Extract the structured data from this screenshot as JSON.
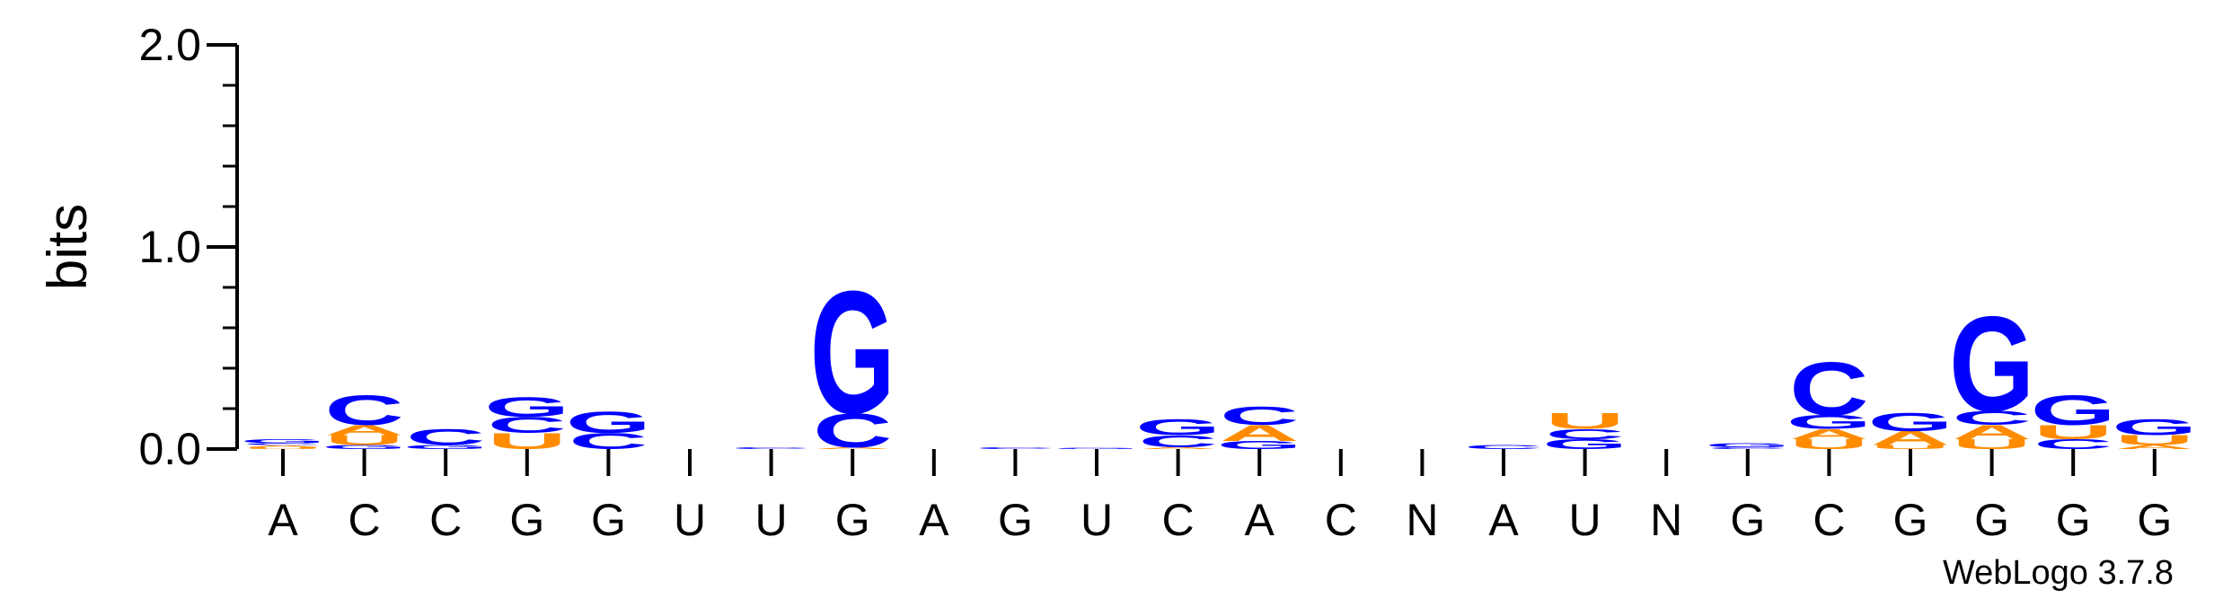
{
  "chart_data": {
    "type": "sequence-logo",
    "ylabel": "bits",
    "ylim": [
      0,
      2.0
    ],
    "yticks": [
      "0.0",
      "1.0",
      "2.0"
    ],
    "credit": "WebLogo 3.7.8",
    "colors": {
      "A": "#ff8c00",
      "U": "#ff8c00",
      "C": "#0000ff",
      "G": "#0000ff"
    },
    "positions": [
      {
        "label": "A",
        "stack": [
          {
            "base": "U",
            "bits": 0.01
          },
          {
            "base": "A",
            "bits": 0.01
          },
          {
            "base": "C",
            "bits": 0.01
          },
          {
            "base": "G",
            "bits": 0.02
          }
        ]
      },
      {
        "label": "C",
        "stack": [
          {
            "base": "G",
            "bits": 0.02
          },
          {
            "base": "U",
            "bits": 0.05
          },
          {
            "base": "A",
            "bits": 0.05
          },
          {
            "base": "C",
            "bits": 0.15
          }
        ]
      },
      {
        "label": "C",
        "stack": [
          {
            "base": "G",
            "bits": 0.02
          },
          {
            "base": "C",
            "bits": 0.08
          }
        ]
      },
      {
        "label": "G",
        "stack": [
          {
            "base": "U",
            "bits": 0.08
          },
          {
            "base": "C",
            "bits": 0.08
          },
          {
            "base": "G",
            "bits": 0.1
          }
        ]
      },
      {
        "label": "G",
        "stack": [
          {
            "base": "C",
            "bits": 0.08
          },
          {
            "base": "G",
            "bits": 0.11
          }
        ]
      },
      {
        "label": "U",
        "stack": []
      },
      {
        "label": "U",
        "stack": [
          {
            "base": "C",
            "bits": 0.01
          }
        ]
      },
      {
        "label": "G",
        "stack": [
          {
            "base": "A",
            "bits": 0.01
          },
          {
            "base": "C",
            "bits": 0.17
          },
          {
            "base": "G",
            "bits": 0.62
          }
        ]
      },
      {
        "label": "A",
        "stack": []
      },
      {
        "label": "G",
        "stack": [
          {
            "base": "C",
            "bits": 0.01
          }
        ]
      },
      {
        "label": "U",
        "stack": [
          {
            "base": "G",
            "bits": 0.005
          }
        ]
      },
      {
        "label": "C",
        "stack": [
          {
            "base": "A",
            "bits": 0.01
          },
          {
            "base": "C",
            "bits": 0.06
          },
          {
            "base": "G",
            "bits": 0.08
          }
        ]
      },
      {
        "label": "A",
        "stack": [
          {
            "base": "G",
            "bits": 0.04
          },
          {
            "base": "A",
            "bits": 0.08
          },
          {
            "base": "C",
            "bits": 0.09
          }
        ]
      },
      {
        "label": "C",
        "stack": []
      },
      {
        "label": "N",
        "stack": []
      },
      {
        "label": "A",
        "stack": [
          {
            "base": "C",
            "bits": 0.02
          }
        ]
      },
      {
        "label": "U",
        "stack": [
          {
            "base": "G",
            "bits": 0.05
          },
          {
            "base": "C",
            "bits": 0.05
          },
          {
            "base": "U",
            "bits": 0.08
          }
        ]
      },
      {
        "label": "N",
        "stack": []
      },
      {
        "label": "G",
        "stack": [
          {
            "base": "C",
            "bits": 0.01
          },
          {
            "base": "G",
            "bits": 0.02
          }
        ]
      },
      {
        "label": "C",
        "stack": [
          {
            "base": "U",
            "bits": 0.05
          },
          {
            "base": "A",
            "bits": 0.05
          },
          {
            "base": "G",
            "bits": 0.07
          },
          {
            "base": "C",
            "bits": 0.27
          }
        ]
      },
      {
        "label": "G",
        "stack": [
          {
            "base": "U",
            "bits": 0.02
          },
          {
            "base": "A",
            "bits": 0.07
          },
          {
            "base": "G",
            "bits": 0.09
          }
        ]
      },
      {
        "label": "G",
        "stack": [
          {
            "base": "U",
            "bits": 0.05
          },
          {
            "base": "A",
            "bits": 0.07
          },
          {
            "base": "C",
            "bits": 0.07
          },
          {
            "base": "G",
            "bits": 0.48
          }
        ]
      },
      {
        "label": "G",
        "stack": [
          {
            "base": "C",
            "bits": 0.05
          },
          {
            "base": "U",
            "bits": 0.07
          },
          {
            "base": "G",
            "bits": 0.15
          }
        ]
      },
      {
        "label": "G",
        "stack": [
          {
            "base": "A",
            "bits": 0.02
          },
          {
            "base": "U",
            "bits": 0.05
          },
          {
            "base": "G",
            "bits": 0.08
          }
        ]
      }
    ]
  }
}
